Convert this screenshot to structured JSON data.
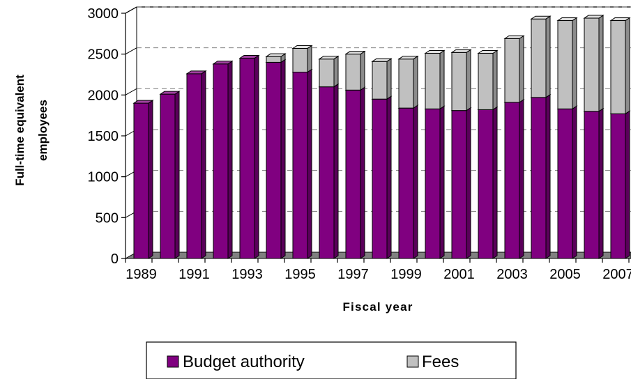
{
  "chart_data": {
    "type": "bar",
    "stacked": true,
    "three_d": true,
    "categories": [
      "1989",
      "1990",
      "1991",
      "1992",
      "1993",
      "1994",
      "1995",
      "1996",
      "1997",
      "1998",
      "1999",
      "2000",
      "2001",
      "2002",
      "2003",
      "2004",
      "2005",
      "2006",
      "2007"
    ],
    "x_tick_labels": [
      "1989",
      "1991",
      "1993",
      "1995",
      "1997",
      "1999",
      "2001",
      "2003",
      "2005",
      "2007"
    ],
    "y_ticks": [
      "0",
      "500",
      "1000",
      "1500",
      "2000",
      "2500",
      "3000"
    ],
    "series": [
      {
        "name": "Budget authority",
        "color": "#800080",
        "values": [
          1900,
          2010,
          2260,
          2380,
          2450,
          2400,
          2280,
          2100,
          2060,
          1950,
          1840,
          1830,
          1810,
          1820,
          1910,
          1970,
          1830,
          1800,
          1770
        ]
      },
      {
        "name": "Fees",
        "color": "#c0c0c0",
        "values": [
          0,
          0,
          0,
          0,
          0,
          70,
          290,
          340,
          440,
          460,
          600,
          680,
          710,
          690,
          780,
          960,
          1080,
          1140,
          1140
        ]
      }
    ],
    "xlabel": "Fiscal year",
    "ylabel_lines": [
      "Full-time equivalent",
      "employees"
    ],
    "ylim": [
      0,
      3000
    ],
    "grid": "major horizontal, dashed",
    "legend_position": "bottom"
  }
}
